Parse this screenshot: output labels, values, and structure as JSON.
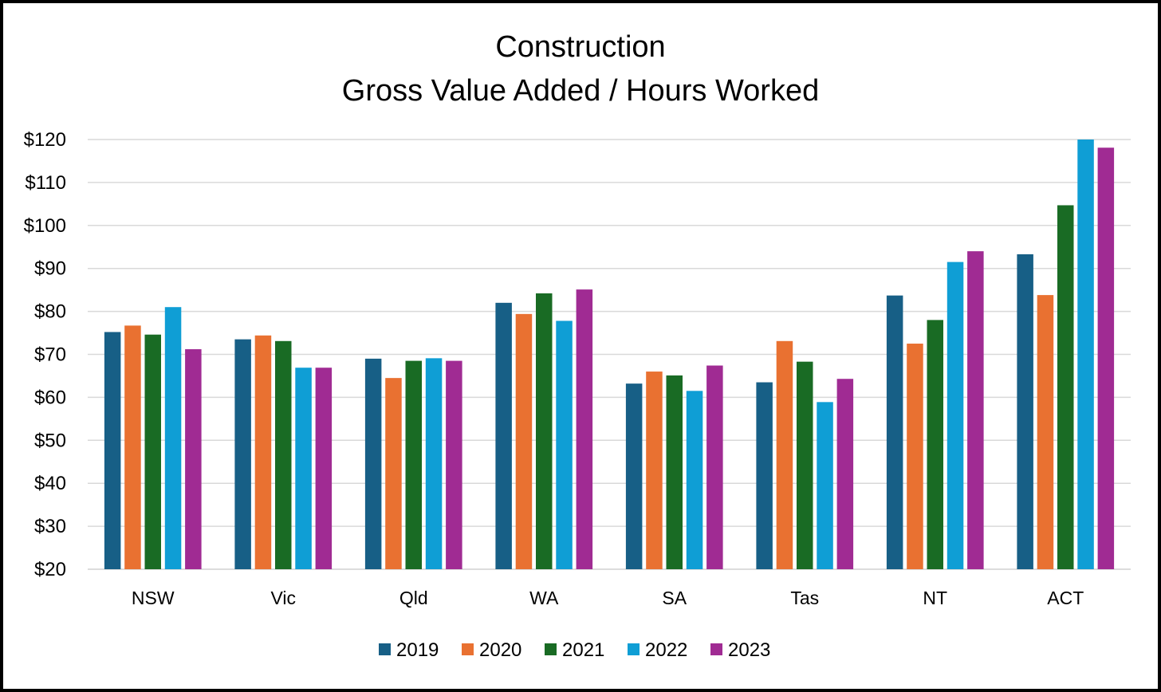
{
  "chart_data": {
    "type": "bar",
    "title": "Construction",
    "subtitle": "Gross Value Added / Hours Worked",
    "categories": [
      "NSW",
      "Vic",
      "Qld",
      "WA",
      "SA",
      "Tas",
      "NT",
      "ACT"
    ],
    "series": [
      {
        "name": "2019",
        "color": "#175f86",
        "values": [
          75.2,
          73.5,
          69.0,
          82.0,
          63.2,
          63.5,
          83.7,
          93.3
        ]
      },
      {
        "name": "2020",
        "color": "#e97131",
        "values": [
          76.7,
          74.4,
          64.5,
          79.4,
          66.0,
          73.1,
          72.5,
          83.8
        ]
      },
      {
        "name": "2021",
        "color": "#196b24",
        "values": [
          74.6,
          73.1,
          68.5,
          84.2,
          65.1,
          68.3,
          78.0,
          104.7
        ]
      },
      {
        "name": "2022",
        "color": "#0f9ed5",
        "values": [
          81.0,
          66.9,
          69.1,
          77.8,
          61.5,
          58.9,
          91.5,
          120.0
        ]
      },
      {
        "name": "2023",
        "color": "#a02b93",
        "values": [
          71.2,
          66.9,
          68.5,
          85.1,
          67.4,
          64.3,
          94.0,
          118.1
        ]
      }
    ],
    "ylim": [
      20,
      120
    ],
    "yticks": [
      20,
      30,
      40,
      50,
      60,
      70,
      80,
      90,
      100,
      110,
      120
    ],
    "ytick_labels": [
      "$20",
      "$30",
      "$40",
      "$50",
      "$60",
      "$70",
      "$80",
      "$90",
      "$100",
      "$110",
      "$120"
    ],
    "grid": true,
    "legend_position": "bottom"
  }
}
